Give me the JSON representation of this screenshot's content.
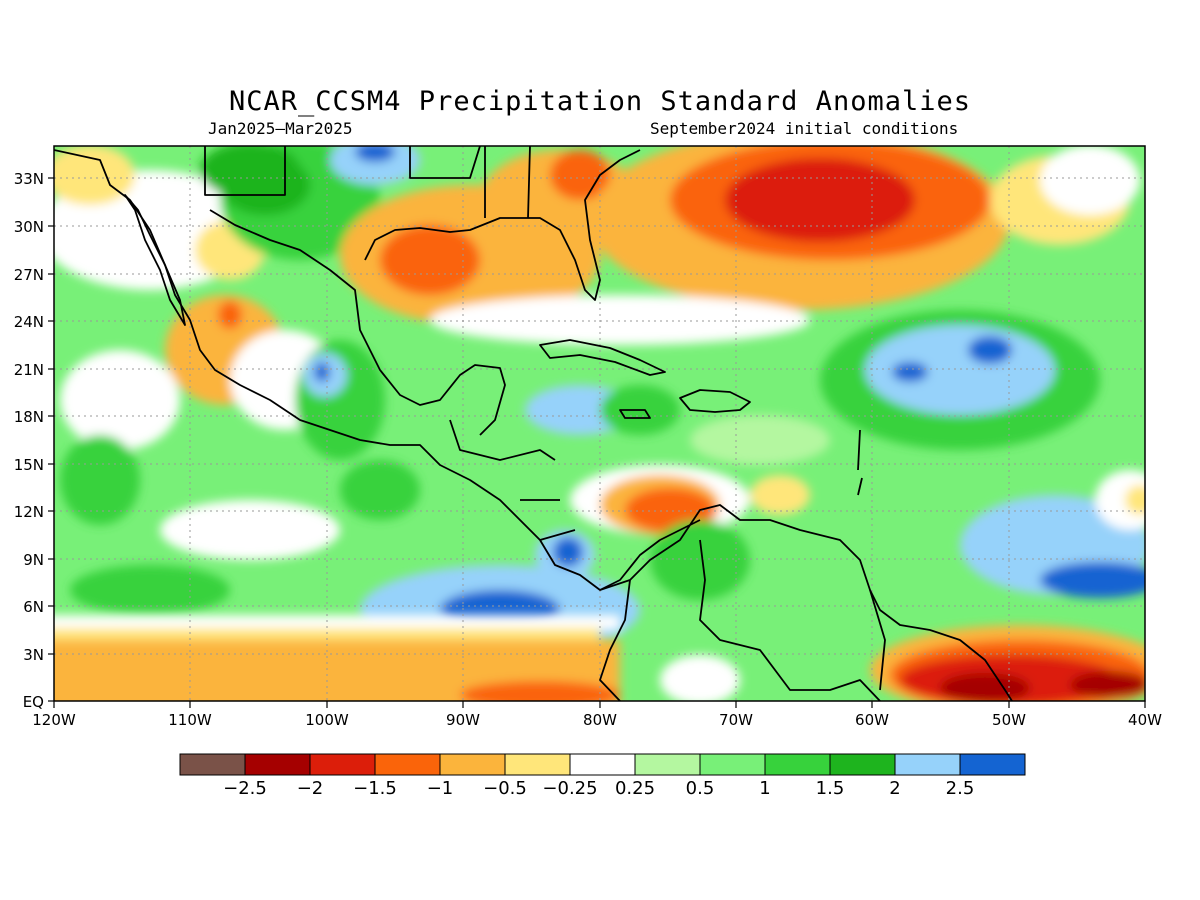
{
  "header": {
    "title": "NCAR_CCSM4 Precipitation Standard Anomalies",
    "period": "Jan2025—Mar2025",
    "init": "September2024 initial conditions"
  },
  "map": {
    "lon_labels": [
      "120W",
      "110W",
      "100W",
      "90W",
      "80W",
      "70W",
      "60W",
      "50W",
      "40W"
    ],
    "lat_labels": [
      "EQ",
      "3N",
      "6N",
      "9N",
      "12N",
      "15N",
      "18N",
      "21N",
      "24N",
      "27N",
      "30N",
      "33N"
    ]
  },
  "colorbar": {
    "colors": [
      "#7a5248",
      "#a50000",
      "#dc1e0a",
      "#fa640a",
      "#fbb43c",
      "#ffe67a",
      "#ffffff",
      "#b4f7a0",
      "#78f078",
      "#37d23c",
      "#1eb41e",
      "#96d2fa",
      "#1464d2"
    ],
    "labels": [
      "−2.5",
      "−2",
      "−1.5",
      "−1",
      "−0.5",
      "−0.25",
      "0.25",
      "0.5",
      "1",
      "1.5",
      "2",
      "2.5"
    ]
  }
}
